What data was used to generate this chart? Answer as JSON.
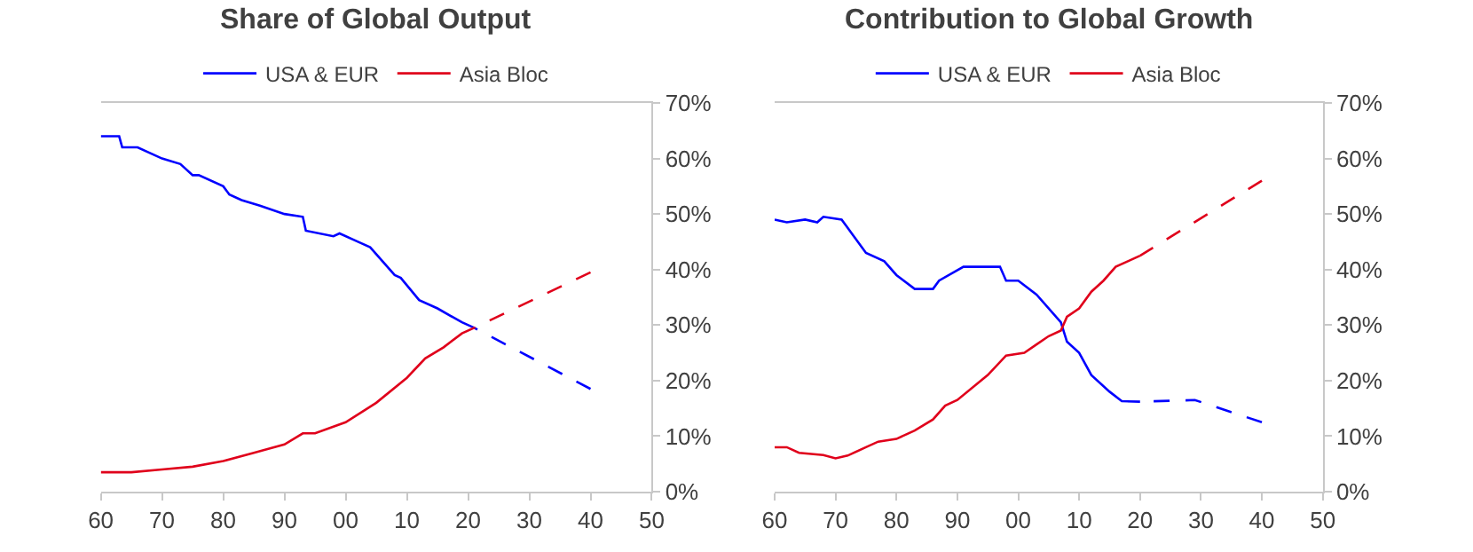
{
  "chart_data": [
    {
      "type": "line",
      "title": "Share of Global Output",
      "legend": "top",
      "grid": false,
      "xlim": [
        1960,
        2050
      ],
      "xticks": [
        {
          "value": 1960,
          "label": "60"
        },
        {
          "value": 1970,
          "label": "70"
        },
        {
          "value": 1980,
          "label": "80"
        },
        {
          "value": 1990,
          "label": "90"
        },
        {
          "value": 2000,
          "label": "00"
        },
        {
          "value": 2010,
          "label": "10"
        },
        {
          "value": 2020,
          "label": "20"
        },
        {
          "value": 2030,
          "label": "30"
        },
        {
          "value": 2040,
          "label": "40"
        },
        {
          "value": 2050,
          "label": "50"
        }
      ],
      "ylim": [
        0,
        70
      ],
      "yticks": [
        {
          "value": 0,
          "label": "0%"
        },
        {
          "value": 10,
          "label": "10%"
        },
        {
          "value": 20,
          "label": "20%"
        },
        {
          "value": 30,
          "label": "30%"
        },
        {
          "value": 40,
          "label": "40%"
        },
        {
          "value": 50,
          "label": "50%"
        },
        {
          "value": 60,
          "label": "60%"
        },
        {
          "value": 70,
          "label": "70%"
        }
      ],
      "series": [
        {
          "name": "USA & EUR",
          "color": "#0000ff",
          "line_style": "solid",
          "x": [
            1960,
            1963,
            1963.5,
            1966,
            1970,
            1973,
            1975,
            1976,
            1980,
            1981,
            1983,
            1986,
            1990,
            1993,
            1993.5,
            1998,
            1999,
            2002,
            2004,
            2008,
            2009,
            2012,
            2015,
            2019,
            2021
          ],
          "values": [
            64,
            64,
            62,
            62,
            60,
            59,
            57,
            57,
            55,
            53.5,
            52.5,
            51.5,
            50,
            49.5,
            47,
            46,
            46.5,
            45,
            44,
            39,
            38.5,
            34.5,
            33,
            30.5,
            29.5
          ]
        },
        {
          "color": "#0000ff",
          "line_style": "dashed",
          "x": [
            2021,
            2040
          ],
          "values": [
            29.5,
            18.5
          ]
        },
        {
          "name": "Asia Bloc",
          "color": "#e0001b",
          "line_style": "solid",
          "x": [
            1960,
            1965,
            1970,
            1975,
            1980,
            1985,
            1990,
            1993,
            1995,
            2000,
            2005,
            2010,
            2013,
            2016,
            2019,
            2021
          ],
          "values": [
            3.5,
            3.5,
            4,
            4.5,
            5.5,
            7,
            8.5,
            10.5,
            10.5,
            12.5,
            16,
            20.5,
            24,
            26,
            28.5,
            29.5
          ]
        },
        {
          "color": "#e0001b",
          "line_style": "dashed",
          "x": [
            2021,
            2040
          ],
          "values": [
            29.5,
            39.5
          ]
        }
      ]
    },
    {
      "type": "line",
      "title": "Contribution to Global Growth",
      "legend": "top",
      "grid": false,
      "xlim": [
        1960,
        2050
      ],
      "xticks": [
        {
          "value": 1960,
          "label": "60"
        },
        {
          "value": 1970,
          "label": "70"
        },
        {
          "value": 1980,
          "label": "80"
        },
        {
          "value": 1990,
          "label": "90"
        },
        {
          "value": 2000,
          "label": "00"
        },
        {
          "value": 2010,
          "label": "10"
        },
        {
          "value": 2020,
          "label": "20"
        },
        {
          "value": 2030,
          "label": "30"
        },
        {
          "value": 2040,
          "label": "40"
        },
        {
          "value": 2050,
          "label": "50"
        }
      ],
      "ylim": [
        0,
        70
      ],
      "yticks": [
        {
          "value": 0,
          "label": "0%"
        },
        {
          "value": 10,
          "label": "10%"
        },
        {
          "value": 20,
          "label": "20%"
        },
        {
          "value": 30,
          "label": "30%"
        },
        {
          "value": 40,
          "label": "40%"
        },
        {
          "value": 50,
          "label": "50%"
        },
        {
          "value": 60,
          "label": "60%"
        },
        {
          "value": 70,
          "label": "70%"
        }
      ],
      "series": [
        {
          "name": "USA & EUR",
          "color": "#0000ff",
          "line_style": "solid",
          "x": [
            1960,
            1962,
            1965,
            1967,
            1968,
            1971,
            1973,
            1975,
            1978,
            1980,
            1983,
            1986,
            1987,
            1991,
            1995,
            1997,
            1998,
            2000,
            2003,
            2007,
            2008,
            2010,
            2012,
            2015,
            2017,
            2020
          ],
          "values": [
            49,
            48.5,
            49,
            48.5,
            49.5,
            49,
            46,
            43,
            41.5,
            39,
            36.5,
            36.5,
            38,
            40.5,
            40.5,
            40.5,
            38,
            38,
            35.5,
            30.5,
            27,
            25,
            21,
            18,
            16.3,
            16.2
          ]
        },
        {
          "color": "#0000ff",
          "line_style": "dashed",
          "x": [
            2020,
            2029,
            2040
          ],
          "values": [
            16.2,
            16.5,
            12.5
          ]
        },
        {
          "name": "Asia Bloc",
          "color": "#e0001b",
          "line_style": "solid",
          "x": [
            1960,
            1962,
            1964,
            1968,
            1970,
            1972,
            1975,
            1977,
            1980,
            1983,
            1986,
            1988,
            1990,
            1995,
            1998,
            2001,
            2003,
            2005,
            2007,
            2008,
            2010,
            2012,
            2014,
            2016,
            2018,
            2020
          ],
          "values": [
            8,
            8,
            7,
            6.6,
            6,
            6.5,
            8,
            9,
            9.5,
            11,
            13,
            15.5,
            16.5,
            21,
            24.5,
            25,
            26.5,
            28,
            29,
            31.5,
            33,
            36,
            38,
            40.5,
            41.5,
            42.5
          ]
        },
        {
          "color": "#e0001b",
          "line_style": "dashed",
          "x": [
            2020,
            2040
          ],
          "values": [
            42.5,
            56
          ]
        }
      ]
    }
  ]
}
